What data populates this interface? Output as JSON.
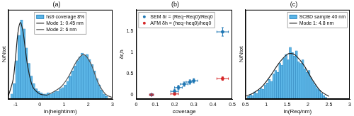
{
  "chart_data": [
    {
      "type": "histogram",
      "title": "(a)",
      "x_label": "ln(height/nm)",
      "y_label": "N/Ntot",
      "xlim": [
        -1.3,
        3
      ],
      "xticks": [
        -1,
        0,
        1,
        2,
        3
      ],
      "ylim": [
        0,
        0.07
      ],
      "grid": false,
      "tick_labels": "x",
      "legend": "upper center",
      "series": [
        {
          "name": "hs9 coverage 8%",
          "type": "histogram",
          "color": "#5bb5e6",
          "bins": [
            -1.2,
            -1.1,
            -1.0,
            -0.9,
            -0.8,
            -0.7,
            -0.6,
            -0.5,
            -0.4,
            -0.3,
            -0.2,
            -0.1,
            0.0,
            0.1,
            0.2,
            0.3,
            0.4,
            0.5,
            0.6,
            0.7,
            0.8,
            0.9,
            1.0,
            1.1,
            1.2,
            1.3,
            1.4,
            1.5,
            1.6,
            1.7,
            1.8,
            1.9,
            2.0,
            2.1,
            2.2,
            2.3,
            2.4,
            2.5,
            2.6,
            2.7,
            2.8
          ],
          "values": [
            0.004,
            0.012,
            0.03,
            0.05,
            0.062,
            0.055,
            0.04,
            0.028,
            0.018,
            0.012,
            0.008,
            0.006,
            0.005,
            0.004,
            0.004,
            0.005,
            0.004,
            0.005,
            0.006,
            0.006,
            0.008,
            0.009,
            0.011,
            0.014,
            0.018,
            0.022,
            0.026,
            0.03,
            0.033,
            0.036,
            0.034,
            0.035,
            0.031,
            0.027,
            0.022,
            0.016,
            0.011,
            0.007,
            0.004,
            0.002
          ]
        },
        {
          "name": "Mode 1: 0.45 nm",
          "type": "line",
          "color": "#222222",
          "line_style": "solid",
          "x": [
            -1.3,
            -1.1,
            -1.0,
            -0.9,
            -0.8,
            -0.7,
            -0.6,
            -0.5,
            -0.3,
            0.0,
            0.3
          ],
          "values": [
            0.002,
            0.015,
            0.032,
            0.052,
            0.06,
            0.054,
            0.04,
            0.026,
            0.01,
            0.004,
            0.003
          ]
        },
        {
          "name": "Mode 2: 6 nm",
          "type": "line",
          "color": "#555555",
          "line_style": "solid",
          "x": [
            0.3,
            0.6,
            0.9,
            1.2,
            1.5,
            1.8,
            2.1,
            2.4,
            2.7,
            3.0
          ],
          "values": [
            0.003,
            0.006,
            0.01,
            0.018,
            0.029,
            0.035,
            0.028,
            0.013,
            0.004,
            0.001
          ]
        }
      ]
    },
    {
      "type": "scatter",
      "title": "(b)",
      "x_label": "coverage",
      "y_label": "δr,h",
      "xlim": [
        0,
        0.5
      ],
      "xticks": [
        0,
        0.1,
        0.2,
        0.3,
        0.4,
        0.5
      ],
      "ylim": [
        -0.1,
        2.0
      ],
      "yticks": [
        0,
        0.5,
        1,
        1.5
      ],
      "grid": false,
      "legend": "upper left",
      "series": [
        {
          "name": "SEM δr = (Req−Req0)/Req0",
          "color": "#1f77b4",
          "marker": "circle",
          "x": [
            0.08,
            0.2,
            0.22,
            0.25,
            0.28,
            0.3,
            0.45
          ],
          "values": [
            0,
            0.08,
            0.17,
            0.25,
            0.3,
            0.33,
            1.48
          ],
          "x_err": [
            0.01,
            0.02,
            0.02,
            0.02,
            0.02,
            0.02,
            0.03
          ],
          "y_err": [
            0.02,
            0.05,
            0.05,
            0.05,
            0.05,
            0.05,
            0.1
          ]
        },
        {
          "name": "AFM δh = (heq−heq0)/heq0",
          "color": "#d62728",
          "marker": "circle",
          "x": [
            0.08,
            0.2,
            0.45
          ],
          "values": [
            0,
            0.02,
            0.38
          ],
          "x_err": [
            0.01,
            0.02,
            0.03
          ],
          "y_err": [
            0.02,
            0.03,
            0.04
          ]
        }
      ]
    },
    {
      "type": "histogram",
      "title": "(c)",
      "x_label": "ln(Req/nm)",
      "y_label": "N/Ntot",
      "xlim": [
        0.5,
        3
      ],
      "xticks": [
        0.5,
        1,
        1.5,
        2,
        2.5,
        3
      ],
      "ylim": [
        0,
        0.1
      ],
      "grid": false,
      "tick_labels": "x",
      "legend": "upper right",
      "series": [
        {
          "name": "SCBD sample 40 nm",
          "type": "histogram",
          "color": "#5bb5e6",
          "bins": [
            0.55,
            0.6,
            0.65,
            0.7,
            0.75,
            0.8,
            0.85,
            0.9,
            0.95,
            1.0,
            1.05,
            1.1,
            1.15,
            1.2,
            1.25,
            1.3,
            1.35,
            1.4,
            1.45,
            1.5,
            1.55,
            1.6,
            1.65,
            1.7,
            1.75,
            1.8,
            1.85,
            1.9,
            1.95,
            2.0,
            2.05,
            2.1,
            2.15,
            2.2,
            2.25,
            2.3,
            2.35,
            2.4,
            2.45
          ],
          "values": [
            0.003,
            0.005,
            0.004,
            0.008,
            0.006,
            0.01,
            0.012,
            0.011,
            0.016,
            0.018,
            0.022,
            0.02,
            0.028,
            0.032,
            0.03,
            0.04,
            0.038,
            0.046,
            0.05,
            0.044,
            0.058,
            0.052,
            0.048,
            0.054,
            0.042,
            0.04,
            0.044,
            0.034,
            0.03,
            0.032,
            0.024,
            0.02,
            0.016,
            0.012,
            0.01,
            0.006,
            0.004,
            0.002
          ]
        },
        {
          "name": "Mode 1: 4.8 nm",
          "type": "line",
          "color": "#222222",
          "line_style": "solid",
          "x": [
            0.5,
            0.7,
            0.9,
            1.1,
            1.3,
            1.5,
            1.6,
            1.7,
            1.9,
            2.1,
            2.3,
            2.5
          ],
          "values": [
            0.003,
            0.007,
            0.014,
            0.026,
            0.04,
            0.05,
            0.051,
            0.049,
            0.038,
            0.022,
            0.009,
            0.003
          ]
        }
      ]
    }
  ]
}
